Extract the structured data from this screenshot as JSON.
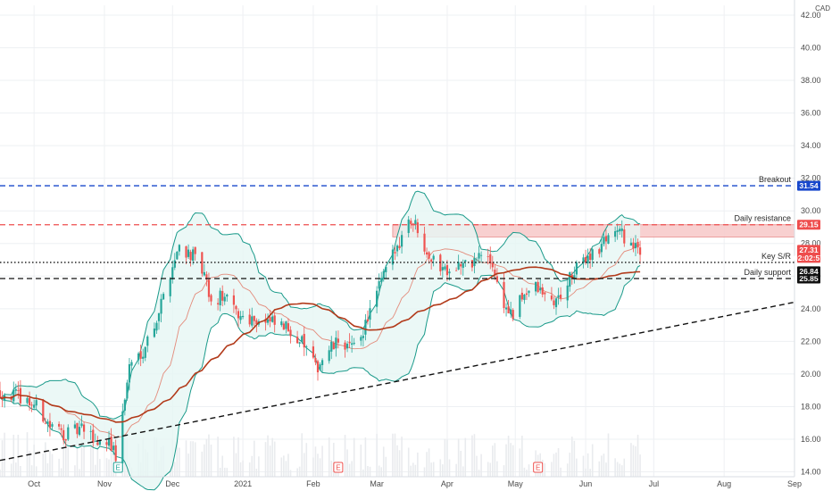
{
  "chart_data": {
    "type": "candlestick",
    "title": "",
    "currency": "CAD",
    "x_axis": {
      "range": [
        "2020-09-16",
        "2021-09-01"
      ],
      "ticks": [
        {
          "label": "Oct",
          "date": "2020-10-01"
        },
        {
          "label": "Nov",
          "date": "2020-11-01"
        },
        {
          "label": "Dec",
          "date": "2020-12-01"
        },
        {
          "label": "2021",
          "date": "2021-01-01"
        },
        {
          "label": "Feb",
          "date": "2021-02-01"
        },
        {
          "label": "Mar",
          "date": "2021-03-01"
        },
        {
          "label": "Apr",
          "date": "2021-04-01"
        },
        {
          "label": "May",
          "date": "2021-05-01"
        },
        {
          "label": "Jun",
          "date": "2021-06-01"
        },
        {
          "label": "Jul",
          "date": "2021-07-01"
        },
        {
          "label": "Aug",
          "date": "2021-08-01"
        },
        {
          "label": "Sep",
          "date": "2021-09-01"
        }
      ]
    },
    "y_axis": {
      "range": [
        13.7,
        42.6
      ],
      "ticks": [
        "14.00",
        "16.00",
        "18.00",
        "20.00",
        "22.00",
        "24.00",
        "26.00",
        "28.00",
        "30.00",
        "32.00",
        "34.00",
        "36.00",
        "38.00",
        "40.00",
        "42.00"
      ]
    },
    "price_path": [
      [
        "2020-09-16",
        18.9
      ],
      [
        "2020-09-25",
        18.6
      ],
      [
        "2020-10-02",
        18.0
      ],
      [
        "2020-10-08",
        16.8
      ],
      [
        "2020-10-15",
        16.3
      ],
      [
        "2020-10-22",
        16.6
      ],
      [
        "2020-10-29",
        15.8
      ],
      [
        "2020-11-03",
        16.0
      ],
      [
        "2020-11-06",
        14.9
      ],
      [
        "2020-11-09",
        17.5
      ],
      [
        "2020-11-12",
        20.5
      ],
      [
        "2020-11-18",
        21.5
      ],
      [
        "2020-11-24",
        23.4
      ],
      [
        "2020-11-30",
        26.2
      ],
      [
        "2020-12-04",
        27.9
      ],
      [
        "2020-12-10",
        27.2
      ],
      [
        "2020-12-15",
        26.0
      ],
      [
        "2020-12-18",
        24.2
      ],
      [
        "2020-12-23",
        24.8
      ],
      [
        "2020-12-30",
        23.6
      ],
      [
        "2021-01-06",
        23.4
      ],
      [
        "2021-01-14",
        23.1
      ],
      [
        "2021-01-22",
        22.7
      ],
      [
        "2021-01-28",
        21.8
      ],
      [
        "2021-02-02",
        20.3
      ],
      [
        "2021-02-07",
        21.3
      ],
      [
        "2021-02-13",
        22.1
      ],
      [
        "2021-02-18",
        21.5
      ],
      [
        "2021-02-23",
        22.7
      ],
      [
        "2021-02-28",
        24.6
      ],
      [
        "2021-03-05",
        26.4
      ],
      [
        "2021-03-10",
        27.8
      ],
      [
        "2021-03-15",
        29.6
      ],
      [
        "2021-03-18",
        29.2
      ],
      [
        "2021-03-23",
        27.6
      ],
      [
        "2021-03-27",
        26.7
      ],
      [
        "2021-04-01",
        26.5
      ],
      [
        "2021-04-06",
        26.7
      ],
      [
        "2021-04-10",
        26.6
      ],
      [
        "2021-04-16",
        27.3
      ],
      [
        "2021-04-21",
        26.7
      ],
      [
        "2021-04-25",
        24.4
      ],
      [
        "2021-04-30",
        23.5
      ],
      [
        "2021-05-05",
        25.0
      ],
      [
        "2021-05-10",
        25.3
      ],
      [
        "2021-05-15",
        24.6
      ],
      [
        "2021-05-19",
        24.4
      ],
      [
        "2021-05-24",
        25.6
      ],
      [
        "2021-05-28",
        26.4
      ],
      [
        "2021-06-02",
        27.3
      ],
      [
        "2021-06-07",
        27.6
      ],
      [
        "2021-06-10",
        28.4
      ],
      [
        "2021-06-14",
        28.9
      ],
      [
        "2021-06-18",
        28.4
      ],
      [
        "2021-06-22",
        27.8
      ],
      [
        "2021-06-25",
        27.31
      ]
    ],
    "horizontal_levels": [
      {
        "label": "Breakout",
        "value": 31.54,
        "tag": "31.54",
        "color": "#1848cc",
        "style": "dashed"
      },
      {
        "label": "Daily resistance",
        "value": 29.15,
        "tag": "29.15",
        "color": "#ee4d4d",
        "style": "dashed"
      },
      {
        "label": "Key S/R",
        "value": 26.84,
        "tag": "26.84",
        "color": "#111111",
        "style": "dotted"
      },
      {
        "label": "Daily support",
        "value": 25.85,
        "tag": "25.85",
        "color": "#111111",
        "style": "dashed"
      }
    ],
    "resistance_zone": {
      "from": 28.4,
      "to": 29.15,
      "start": "2021-03-08",
      "end": "2021-09-01",
      "color": "#f7c8c8"
    },
    "trendline": {
      "start": [
        "2020-09-16",
        14.7
      ],
      "end": [
        "2021-09-01",
        24.4
      ],
      "color": "#111111",
      "style": "dashed"
    },
    "last_price": {
      "value": "27.31",
      "countdown": "02:02:57",
      "color": "#ee4d4d"
    },
    "events": [
      {
        "label": "E",
        "date": "2020-11-07",
        "color": "#26a69a"
      },
      {
        "label": "E",
        "date": "2021-02-12",
        "color": "#ef5350"
      },
      {
        "label": "E",
        "date": "2021-05-11",
        "color": "#ef5350"
      }
    ],
    "colors": {
      "up_candle": "#26a69a",
      "down_candle": "#ef5350",
      "bollinger_band": "#1a9a8a",
      "bollinger_fill": "#e6f6f4",
      "moving_average": "#b23a1a",
      "volume": "#e9ebee",
      "grid": "#eef0f3"
    }
  }
}
